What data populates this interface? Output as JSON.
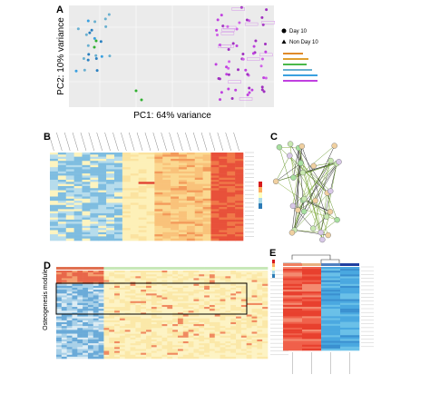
{
  "panels": {
    "a": {
      "label": "A",
      "x_axis_label": "PC1: 64% variance",
      "y_axis_label": "PC2: 10% variance",
      "legend": [
        "Day 10",
        "Non Day 10"
      ]
    },
    "b": {
      "label": "B"
    },
    "c": {
      "label": "C"
    },
    "d": {
      "label": "D",
      "module_label": "Osteogenesis module"
    },
    "e": {
      "label": "E"
    }
  }
}
